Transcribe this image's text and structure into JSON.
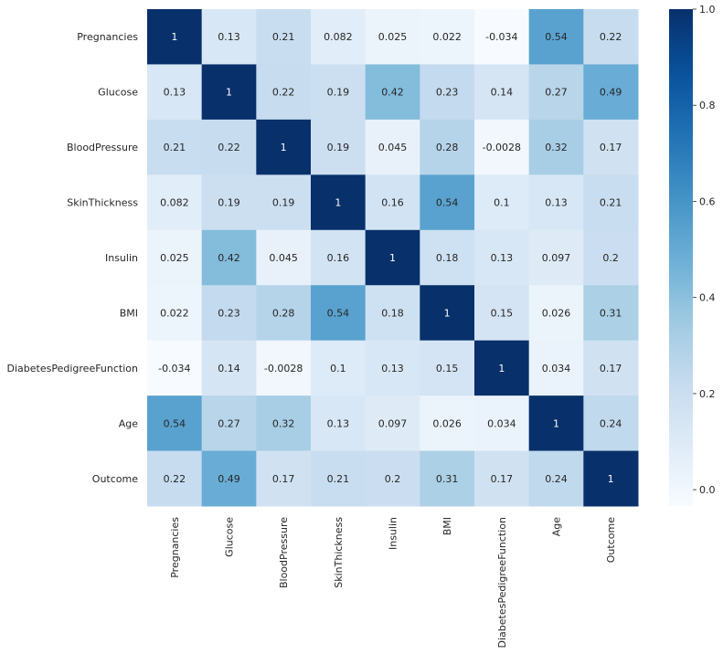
{
  "chart_data": {
    "type": "heatmap",
    "rows": [
      "Pregnancies",
      "Glucose",
      "BloodPressure",
      "SkinThickness",
      "Insulin",
      "BMI",
      "DiabetesPedigreeFunction",
      "Age",
      "Outcome"
    ],
    "columns": [
      "Pregnancies",
      "Glucose",
      "BloodPressure",
      "SkinThickness",
      "Insulin",
      "BMI",
      "DiabetesPedigreeFunction",
      "Age",
      "Outcome"
    ],
    "values": [
      [
        1,
        0.13,
        0.21,
        0.082,
        0.025,
        0.022,
        -0.034,
        0.54,
        0.22
      ],
      [
        0.13,
        1,
        0.22,
        0.19,
        0.42,
        0.23,
        0.14,
        0.27,
        0.49
      ],
      [
        0.21,
        0.22,
        1,
        0.19,
        0.045,
        0.28,
        -0.0028,
        0.32,
        0.17
      ],
      [
        0.082,
        0.19,
        0.19,
        1,
        0.16,
        0.54,
        0.1,
        0.13,
        0.21
      ],
      [
        0.025,
        0.42,
        0.045,
        0.16,
        1,
        0.18,
        0.13,
        0.097,
        0.2
      ],
      [
        0.022,
        0.23,
        0.28,
        0.54,
        0.18,
        1,
        0.15,
        0.026,
        0.31
      ],
      [
        -0.034,
        0.14,
        -0.0028,
        0.1,
        0.13,
        0.15,
        1,
        0.034,
        0.17
      ],
      [
        0.54,
        0.27,
        0.32,
        0.13,
        0.097,
        0.026,
        0.034,
        1,
        0.24
      ],
      [
        0.22,
        0.49,
        0.17,
        0.21,
        0.2,
        0.31,
        0.17,
        0.24,
        1
      ]
    ],
    "colormap": "Blues",
    "colorbar": {
      "vmin": -0.034,
      "vmax": 1.0,
      "ticks": [
        1.0,
        0.8,
        0.6,
        0.4,
        0.2,
        0.0
      ],
      "tick_labels": [
        "1.0",
        "0.8",
        "0.6",
        "0.4",
        "0.2",
        "0.0"
      ]
    },
    "colors": {
      "low": "#f7fbff",
      "high": "#08306b",
      "text_dark": "#262626",
      "text_light": "#ffffff"
    },
    "title": "",
    "xlabel": "",
    "ylabel": ""
  }
}
